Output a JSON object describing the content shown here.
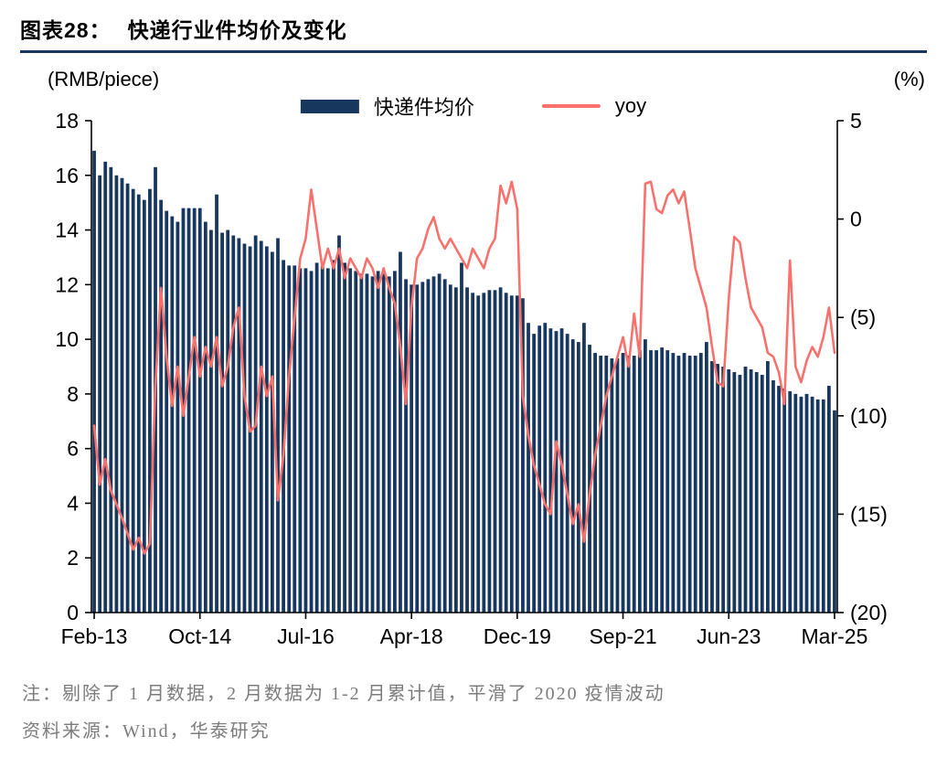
{
  "header": {
    "figure_label": "图表28：",
    "title": "快递行业件均价及变化"
  },
  "axes": {
    "left_unit": "(RMB/piece)",
    "right_unit": "(%)"
  },
  "footnote": {
    "note": "注：剔除了 1 月数据，2 月数据为 1-2 月累计值，平滑了 2020 疫情波动",
    "source": "资料来源：Wind，华泰研究"
  },
  "colors": {
    "bar": "#17375E",
    "line": "#F8716C",
    "rule": "#17375E",
    "axis": "#000000"
  },
  "chart_data": {
    "type": "combo",
    "title": "快递行业件均价及变化",
    "x_tick_labels": [
      "Feb-13",
      "Oct-14",
      "Jul-16",
      "Apr-18",
      "Dec-19",
      "Sep-21",
      "Jun-23",
      "Mar-25"
    ],
    "x_tick_indices": [
      0,
      19,
      38,
      57,
      76,
      95,
      114,
      133
    ],
    "left_axis": {
      "label": "(RMB/piece)",
      "range": [
        0,
        18
      ],
      "ticks": [
        0,
        2,
        4,
        6,
        8,
        10,
        12,
        14,
        16,
        18
      ]
    },
    "right_axis": {
      "label": "(%)",
      "range": [
        -20,
        5
      ],
      "tick_values": [
        5,
        0,
        -5,
        -10,
        -15,
        -20
      ],
      "tick_labels": [
        "5",
        "0",
        "(5)",
        "(10)",
        "(15)",
        "(20)"
      ]
    },
    "grid": false,
    "legend_position": "top",
    "series": [
      {
        "name": "快递件均价",
        "type": "bar",
        "axis": "left",
        "color": "#17375E",
        "values": [
          16.9,
          16.0,
          16.5,
          16.3,
          16.0,
          15.9,
          15.7,
          15.5,
          15.3,
          15.1,
          15.5,
          16.3,
          15.1,
          14.7,
          14.5,
          14.3,
          14.8,
          14.8,
          14.8,
          14.8,
          14.3,
          14.0,
          15.3,
          13.9,
          14.0,
          13.8,
          13.7,
          13.5,
          13.4,
          13.8,
          13.6,
          13.4,
          13.2,
          13.7,
          12.9,
          12.7,
          12.7,
          12.6,
          12.6,
          12.5,
          12.8,
          12.7,
          12.6,
          12.9,
          13.8,
          12.8,
          12.6,
          12.5,
          12.4,
          12.4,
          12.3,
          12.5,
          12.4,
          12.3,
          12.5,
          13.2,
          12.2,
          12.0,
          12.0,
          12.1,
          12.2,
          12.3,
          12.4,
          12.2,
          12.0,
          11.9,
          12.8,
          11.9,
          11.7,
          11.6,
          11.7,
          11.8,
          11.8,
          11.9,
          11.7,
          11.6,
          11.6,
          11.5,
          10.6,
          10.2,
          10.5,
          10.6,
          10.4,
          10.3,
          10.4,
          10.2,
          10.0,
          9.9,
          10.6,
          9.8,
          9.5,
          9.4,
          9.4,
          9.3,
          9.3,
          9.5,
          9.4,
          9.4,
          9.6,
          10.0,
          9.6,
          9.6,
          9.7,
          9.6,
          9.5,
          9.4,
          9.5,
          9.4,
          9.4,
          9.5,
          9.9,
          9.2,
          9.1,
          9.0,
          8.9,
          8.8,
          8.7,
          9.0,
          8.9,
          8.8,
          8.7,
          9.2,
          8.5,
          8.3,
          8.2,
          8.1,
          8.0,
          7.9,
          8.0,
          7.9,
          7.8,
          7.8,
          8.3,
          7.4
        ]
      },
      {
        "name": "yoy",
        "type": "line",
        "axis": "right",
        "color": "#F8716C",
        "values": [
          -10.5,
          -13.5,
          -12.2,
          -13.8,
          -14.5,
          -15.2,
          -16.0,
          -16.8,
          -16.2,
          -17.0,
          -16.5,
          -8.5,
          -3.5,
          -7.0,
          -9.5,
          -7.5,
          -10.0,
          -8.0,
          -6.0,
          -8.0,
          -6.5,
          -7.5,
          -6.0,
          -8.5,
          -7.5,
          -5.5,
          -4.5,
          -9.0,
          -10.8,
          -10.5,
          -7.5,
          -9.0,
          -8.0,
          -14.3,
          -12.0,
          -8.0,
          -5.0,
          -2.0,
          -1.0,
          1.5,
          -0.5,
          -2.5,
          -1.5,
          -2.5,
          -1.5,
          -3.0,
          -2.0,
          -2.5,
          -3.0,
          -2.0,
          -2.5,
          -3.5,
          -2.5,
          -3.5,
          -4.3,
          -6.5,
          -9.4,
          -4.5,
          -2.0,
          -1.5,
          -0.5,
          0.1,
          -1.0,
          -1.5,
          -1.0,
          -1.5,
          -2.0,
          -2.5,
          -1.5,
          -2.0,
          -2.5,
          -1.5,
          -1.0,
          1.7,
          0.8,
          1.9,
          0.5,
          -9.0,
          -11.0,
          -12.5,
          -13.5,
          -14.5,
          -15.0,
          -11.3,
          -12.5,
          -14.0,
          -15.5,
          -14.5,
          -16.4,
          -14.0,
          -12.0,
          -10.5,
          -9.0,
          -8.0,
          -7.0,
          -6.0,
          -7.5,
          -4.8,
          -7.0,
          1.8,
          1.9,
          0.5,
          0.3,
          1.2,
          1.5,
          0.8,
          1.4,
          -0.5,
          -2.5,
          -3.5,
          -4.5,
          -6.5,
          -8.3,
          -8.5,
          -4.0,
          -0.9,
          -1.2,
          -3.0,
          -4.5,
          -5.0,
          -5.5,
          -6.8,
          -7.0,
          -7.8,
          -9.4,
          -2.1,
          -7.5,
          -8.3,
          -7.2,
          -6.5,
          -7.0,
          -6.0,
          -4.5,
          -6.8
        ]
      }
    ]
  }
}
